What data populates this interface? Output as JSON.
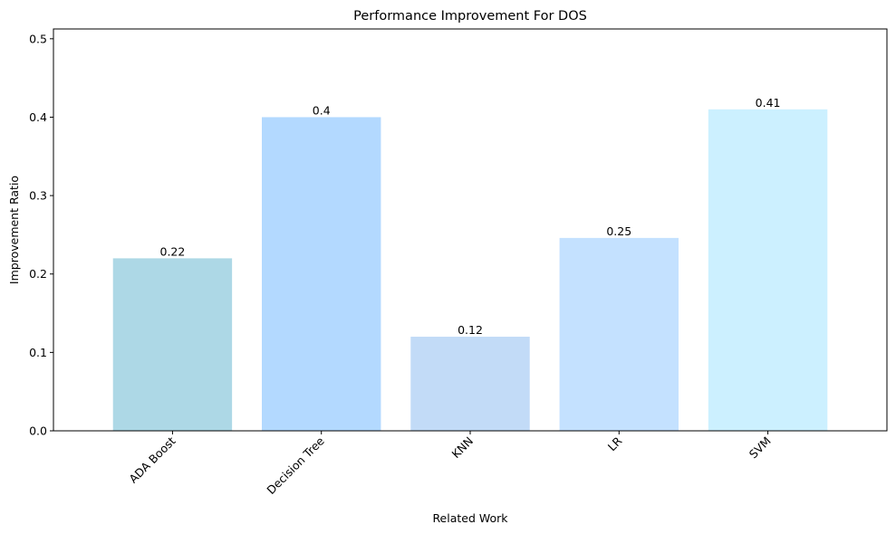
{
  "chart_data": {
    "type": "bar",
    "title": "Performance Improvement For DOS",
    "xlabel": "Related Work",
    "ylabel": "Improvement Ratio",
    "categories": [
      "ADA Boost",
      "Decision Tree",
      "KNN",
      "LR",
      "SVM"
    ],
    "values": [
      0.22,
      0.4,
      0.12,
      0.246,
      0.41
    ],
    "data_labels": [
      "0.22",
      "0.4",
      "0.12",
      "0.25",
      "0.41"
    ],
    "colors": [
      "#add8e6",
      "#b3d9ff",
      "#c2dbf7",
      "#c4e1ff",
      "#ccf0ff"
    ],
    "ylim": [
      0,
      0.5125
    ],
    "yticks": [
      0.0,
      0.1,
      0.2,
      0.3,
      0.4,
      0.5
    ],
    "ytick_labels": [
      "0.0",
      "0.1",
      "0.2",
      "0.3",
      "0.4",
      "0.5"
    ],
    "xtick_rotation": 45,
    "grid": false,
    "legend": "none"
  }
}
